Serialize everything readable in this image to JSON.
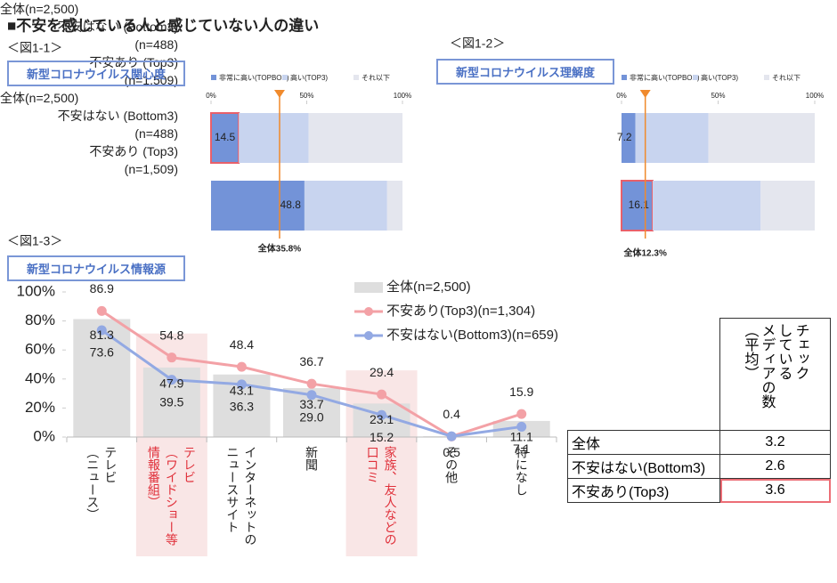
{
  "title": "■不安を感じている人と感じていない人の違い",
  "chart_data": [
    {
      "type": "bar",
      "orientation": "horizontal",
      "stacked": true,
      "figure": "＜図1-1＞",
      "title": "新型コロナウイルス関心度",
      "categories": [
        "全体(n=2,500)",
        "不安はない (Bottom3)\n(n=488)",
        "不安あり (Top3)\n(n=1,509)"
      ],
      "series": [
        {
          "name": "非常に高い(TOPBOX)",
          "color": "#7393d8",
          "values": [
            null,
            14.5,
            48.8
          ]
        },
        {
          "name": "高い(TOP3)",
          "color": "#c8d4ef",
          "values": [
            null,
            36.5,
            43.2
          ]
        },
        {
          "name": "それ以下",
          "color": "#e4e6ee",
          "values": [
            null,
            49,
            8
          ]
        }
      ],
      "xlim": [
        0,
        100
      ],
      "xticks": [
        {
          "value": 0,
          "label": "0%"
        },
        {
          "value": 50,
          "label": "50%"
        },
        {
          "value": 100,
          "label": "100%"
        }
      ],
      "overall": {
        "value": 35.8,
        "label": "全体35.8%"
      },
      "highlight": 1,
      "legend": "top"
    },
    {
      "type": "bar",
      "orientation": "horizontal",
      "stacked": true,
      "figure": "＜図1-2＞",
      "title": "新型コロナウイルス理解度",
      "categories": [
        "全体(n=2,500)",
        "不安はない (Bottom3)\n(n=488)",
        "不安あり (Top3)\n(n=1,509)"
      ],
      "series": [
        {
          "name": "非常に高い(TOPBOX)",
          "color": "#7393d8",
          "values": [
            null,
            7.2,
            16.1
          ]
        },
        {
          "name": "高い(TOP3)",
          "color": "#c8d4ef",
          "values": [
            null,
            37.8,
            55.9
          ]
        },
        {
          "name": "それ以下",
          "color": "#e4e6ee",
          "values": [
            null,
            55,
            28
          ]
        }
      ],
      "xlim": [
        0,
        100
      ],
      "xticks": [
        {
          "value": 0,
          "label": "0%"
        },
        {
          "value": 50,
          "label": "50%"
        },
        {
          "value": 100,
          "label": "100%"
        }
      ],
      "overall": {
        "value": 12.3,
        "label": "全体12.3%"
      },
      "highlight": 2,
      "legend": "top"
    },
    {
      "type": "combo",
      "figure": "＜図1-3＞",
      "title": "新型コロナウイルス情報源",
      "categories": [
        "テレビ\n（ニュース）",
        "テレビ\n（ワイドショー等\n情報番組）",
        "インターネットの\nニュースサイト",
        "新聞",
        "家族、友人などの\n口コミ",
        "その他",
        "特になし"
      ],
      "series": [
        {
          "name": "全体(n=2,500)",
          "type": "bar",
          "color": "#dedede",
          "values": [
            81.3,
            47.9,
            43.1,
            33.7,
            23.1,
            0.5,
            11.1
          ]
        },
        {
          "name": "不安あり(Top3)(n=1,304)",
          "type": "line",
          "color": "#f3a1a6",
          "values": [
            86.9,
            54.8,
            48.4,
            36.7,
            29.4,
            0.4,
            15.9
          ]
        },
        {
          "name": "不安はない(Bottom3)(n=659)",
          "type": "line",
          "color": "#93a9e3",
          "values": [
            73.6,
            39.5,
            36.3,
            29,
            15.2,
            0.5,
            7.1
          ],
          "value_labels": [
            "73.6",
            "39.5",
            "36.3",
            "29.0",
            "15.2",
            null,
            "7.1"
          ]
        }
      ],
      "ylim": [
        0,
        100
      ],
      "yticks": [
        {
          "value": 0,
          "label": "0%"
        },
        {
          "value": 20,
          "label": "20%"
        },
        {
          "value": 40,
          "label": "40%"
        },
        {
          "value": 60,
          "label": "60%"
        },
        {
          "value": 80,
          "label": "80%"
        },
        {
          "value": 100,
          "label": "100%"
        }
      ],
      "highlight": [
        1,
        4
      ],
      "legend": "top"
    }
  ],
  "table": {
    "header": [
      "チェック",
      "している",
      "メディアの数",
      "（平均）"
    ],
    "rows": [
      [
        "全体",
        "3.2"
      ],
      [
        "不安はない(Bottom3)",
        "2.6"
      ],
      [
        "不安あり(Top3)",
        "3.6"
      ]
    ],
    "highlight_row": 2
  }
}
